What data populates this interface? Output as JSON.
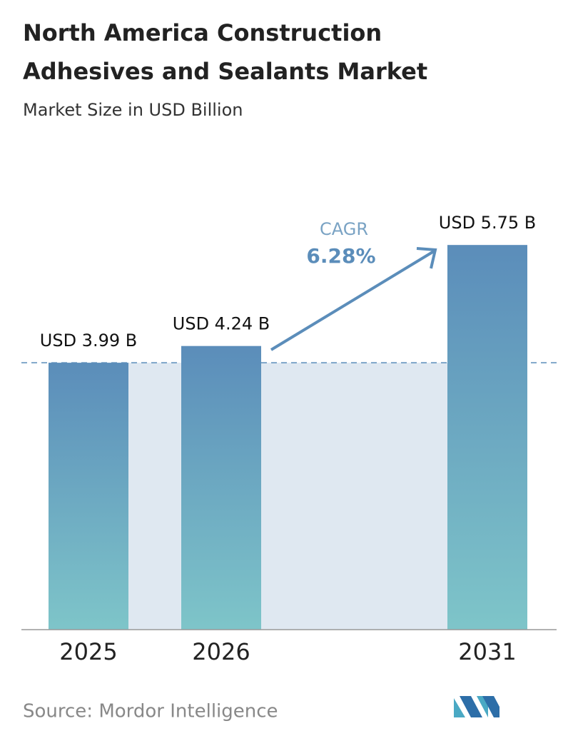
{
  "chart_data": {
    "type": "bar",
    "title": [
      "North America Construction",
      "Adhesives and Sealants Market"
    ],
    "subtitle": "Market Size in USD Billion",
    "categories": [
      "2025",
      "2026",
      "2031"
    ],
    "values": [
      3.99,
      4.24,
      5.75
    ],
    "value_labels": [
      "USD 3.99 B",
      "USD 4.24 B",
      "USD 5.75 B"
    ],
    "color_top": "#5b8dba",
    "color_bottom": "#7ec5c9",
    "ylim": [
      0,
      6.2
    ],
    "annotation": {
      "label": "CAGR",
      "value": "6.28%"
    },
    "source": "Source: Mordor Intelligence"
  }
}
